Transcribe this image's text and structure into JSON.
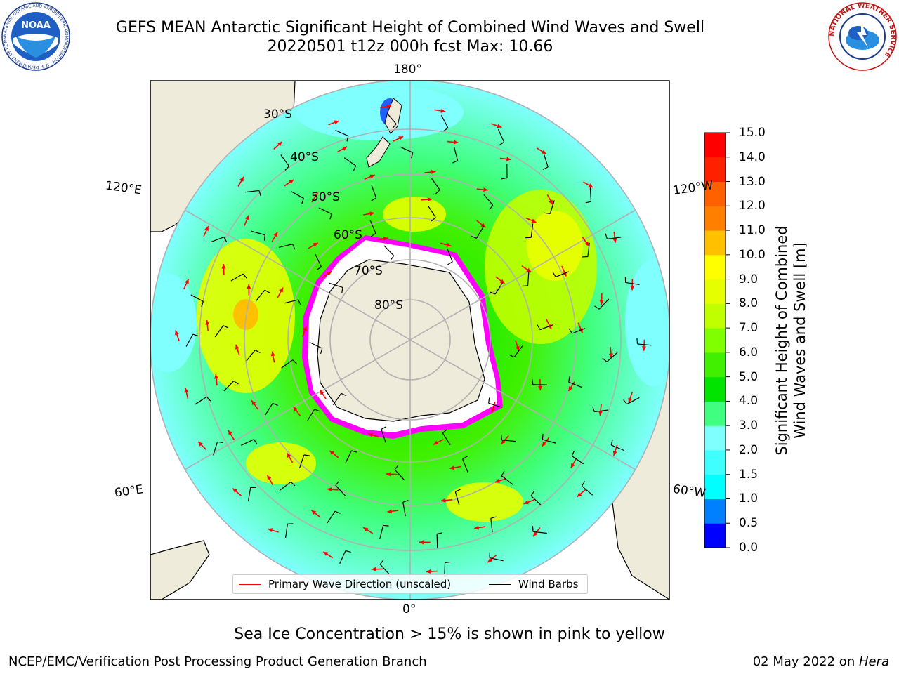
{
  "header": {
    "title_line1": "GEFS MEAN Antarctic Significant Height of Combined Wind Waves and Swell",
    "title_line2": "20220501 t12z 000h fcst   Max: 10.66"
  },
  "logos": {
    "left": {
      "name": "noaa-logo",
      "text": "NOAA",
      "ring_text": "NATIONAL OCEANIC AND ATMOSPHERIC ADMINISTRATION · U.S. DEPARTMENT OF COMMERCE"
    },
    "right": {
      "name": "nws-logo",
      "ring_text": "NATIONAL WEATHER SERVICE"
    }
  },
  "map": {
    "projection": "south polar stereographic",
    "latitude_labels": [
      "30°S",
      "40°S",
      "50°S",
      "60°S",
      "70°S",
      "80°S"
    ],
    "longitude_labels": {
      "top": "180°",
      "bottom": "0°",
      "left_upper": "120°E",
      "right_upper": "120°W",
      "left_lower": "60°E",
      "right_lower": "60°W"
    },
    "legend": {
      "primary_wave": "Primary Wave Direction (unscaled)",
      "wind_barbs": "Wind Barbs"
    }
  },
  "colorbar": {
    "label_line1": "Significant Height of Combined",
    "label_line2": "Wind Waves and Swell [m]",
    "ticks": [
      "0.0",
      "0.5",
      "1.0",
      "1.5",
      "2.0",
      "3.0",
      "4.0",
      "5.0",
      "6.0",
      "7.0",
      "8.0",
      "9.0",
      "10.0",
      "11.0",
      "12.0",
      "13.0",
      "14.0",
      "15.0"
    ],
    "colors": [
      "#0000ff",
      "#0080ff",
      "#00ffff",
      "#40ffff",
      "#80ffff",
      "#40ff80",
      "#00e400",
      "#40f000",
      "#80ff00",
      "#c0ff00",
      "#e6ff00",
      "#ffff00",
      "#ffc000",
      "#ff8000",
      "#ff6000",
      "#ff2000",
      "#ff0000"
    ]
  },
  "colors": {
    "land": "#efebdb",
    "sea_ice_pink": "#ff00ff",
    "wave_arrow": "#ff0000",
    "grid": "#b0b0b0"
  },
  "footnote": "Sea Ice Concentration > 15% is shown in pink to yellow",
  "footer": {
    "left": "NCEP/EMC/Verification Post Processing Product Generation Branch",
    "right_prefix": "02 May 2022 on ",
    "right_host": "Hera"
  }
}
